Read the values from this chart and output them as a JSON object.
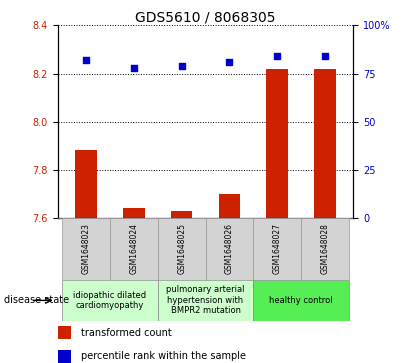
{
  "title": "GDS5610 / 8068305",
  "samples": [
    "GSM1648023",
    "GSM1648024",
    "GSM1648025",
    "GSM1648026",
    "GSM1648027",
    "GSM1648028"
  ],
  "red_values": [
    7.88,
    7.64,
    7.63,
    7.7,
    8.22,
    8.22
  ],
  "blue_values": [
    82,
    78,
    79,
    81,
    84,
    84
  ],
  "ylim_left": [
    7.6,
    8.4
  ],
  "ylim_right": [
    0,
    100
  ],
  "yticks_left": [
    7.6,
    7.8,
    8.0,
    8.2,
    8.4
  ],
  "yticks_right": [
    0,
    25,
    50,
    75,
    100
  ],
  "red_color": "#cc2200",
  "blue_color": "#0000cc",
  "group_configs": [
    {
      "indices": [
        0,
        1
      ],
      "label": "idiopathic dilated\ncardiomyopathy",
      "color": "#ccffcc"
    },
    {
      "indices": [
        2,
        3
      ],
      "label": "pulmonary arterial\nhypertension with\nBMPR2 mutation",
      "color": "#ccffcc"
    },
    {
      "indices": [
        4,
        5
      ],
      "label": "healthy control",
      "color": "#55ee55"
    }
  ],
  "legend_red": "transformed count",
  "legend_blue": "percentile rank within the sample",
  "disease_state_label": "disease state",
  "bar_bottom": 7.6,
  "title_fontsize": 10,
  "tick_label_fontsize": 7,
  "sample_label_fontsize": 5.5,
  "group_label_fontsize": 6,
  "legend_fontsize": 7
}
